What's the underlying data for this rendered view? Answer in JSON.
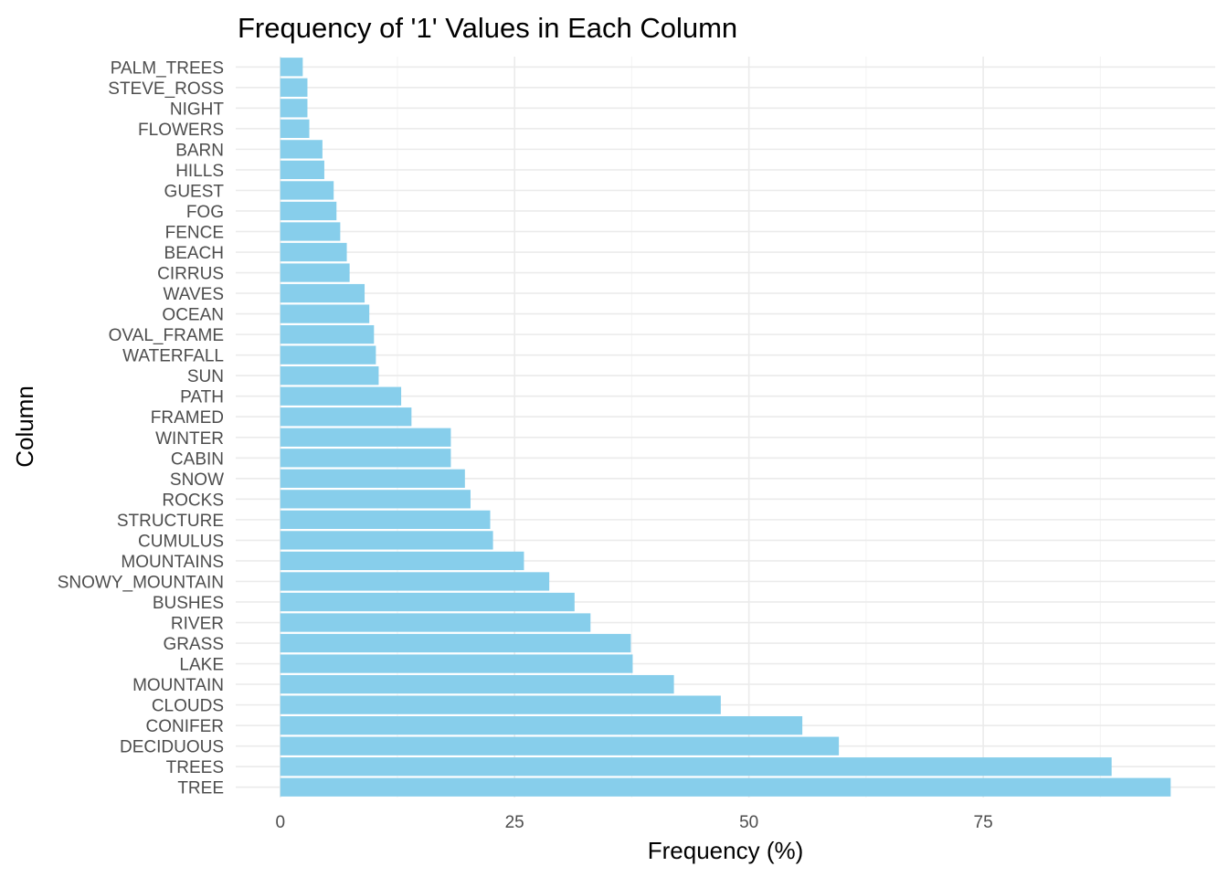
{
  "chart_data": {
    "type": "bar",
    "orientation": "horizontal",
    "title": "Frequency of '1' Values in Each Column",
    "xlabel": "Frequency (%)",
    "ylabel": "Column",
    "categories": [
      "TREE",
      "TREES",
      "DECIDUOUS",
      "CONIFER",
      "CLOUDS",
      "MOUNTAIN",
      "LAKE",
      "GRASS",
      "RIVER",
      "BUSHES",
      "SNOWY_MOUNTAIN",
      "MOUNTAINS",
      "CUMULUS",
      "STRUCTURE",
      "ROCKS",
      "SNOW",
      "CABIN",
      "WINTER",
      "FRAMED",
      "PATH",
      "SUN",
      "WATERFALL",
      "OVAL_FRAME",
      "OCEAN",
      "WAVES",
      "CIRRUS",
      "BEACH",
      "FENCE",
      "FOG",
      "GUEST",
      "HILLS",
      "BARN",
      "FLOWERS",
      "NIGHT",
      "STEVE_ROSS",
      "PALM_TREES"
    ],
    "values": [
      95.0,
      88.7,
      59.6,
      55.7,
      47.0,
      42.0,
      37.6,
      37.4,
      33.1,
      31.4,
      28.7,
      26.0,
      22.7,
      22.4,
      20.3,
      19.7,
      18.2,
      18.2,
      14.0,
      12.9,
      10.5,
      10.2,
      10.0,
      9.5,
      9.0,
      7.4,
      7.1,
      6.4,
      6.0,
      5.7,
      4.7,
      4.5,
      3.1,
      2.9,
      2.9,
      2.4
    ],
    "xlim": [
      -4.75,
      99.75
    ],
    "xticks": [
      0,
      25,
      50,
      75
    ],
    "xtick_labels": [
      "0",
      "25",
      "50",
      "75"
    ],
    "bar_color": "#87ceeb",
    "grid": true,
    "legend": "none"
  }
}
